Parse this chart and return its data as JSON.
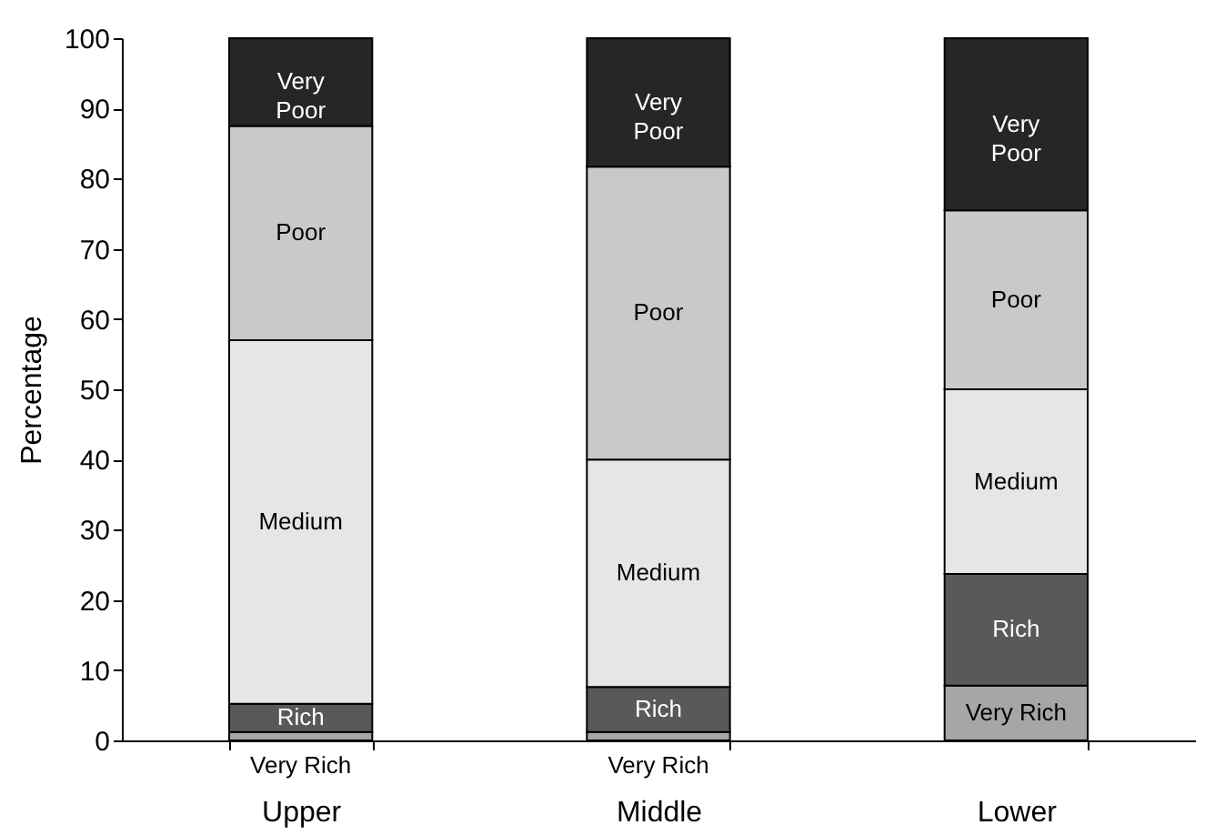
{
  "chart_data": {
    "type": "bar",
    "stacked": true,
    "ylabel": "Percentage",
    "categories": [
      "Upper",
      "Middle",
      "Lower"
    ],
    "series": [
      {
        "name": "Very Rich",
        "color": "#a6a6a6",
        "values": [
          1.2,
          1.2,
          7.8
        ]
      },
      {
        "name": "Rich",
        "color": "#595959",
        "values": [
          4,
          6.4,
          15.9
        ]
      },
      {
        "name": "Medium",
        "color": "#e6e6e6",
        "values": [
          51.8,
          32.4,
          26.3
        ]
      },
      {
        "name": "Poor",
        "color": "#c9c9c9",
        "values": [
          30.5,
          41.7,
          25.5
        ]
      },
      {
        "name": "Very Poor",
        "color": "#262626",
        "values": [
          12.5,
          18.3,
          24.5
        ]
      }
    ],
    "ylim": [
      0,
      100
    ],
    "yticks": [
      0,
      10,
      20,
      30,
      40,
      50,
      60,
      70,
      80,
      90,
      100
    ],
    "grid": false
  }
}
